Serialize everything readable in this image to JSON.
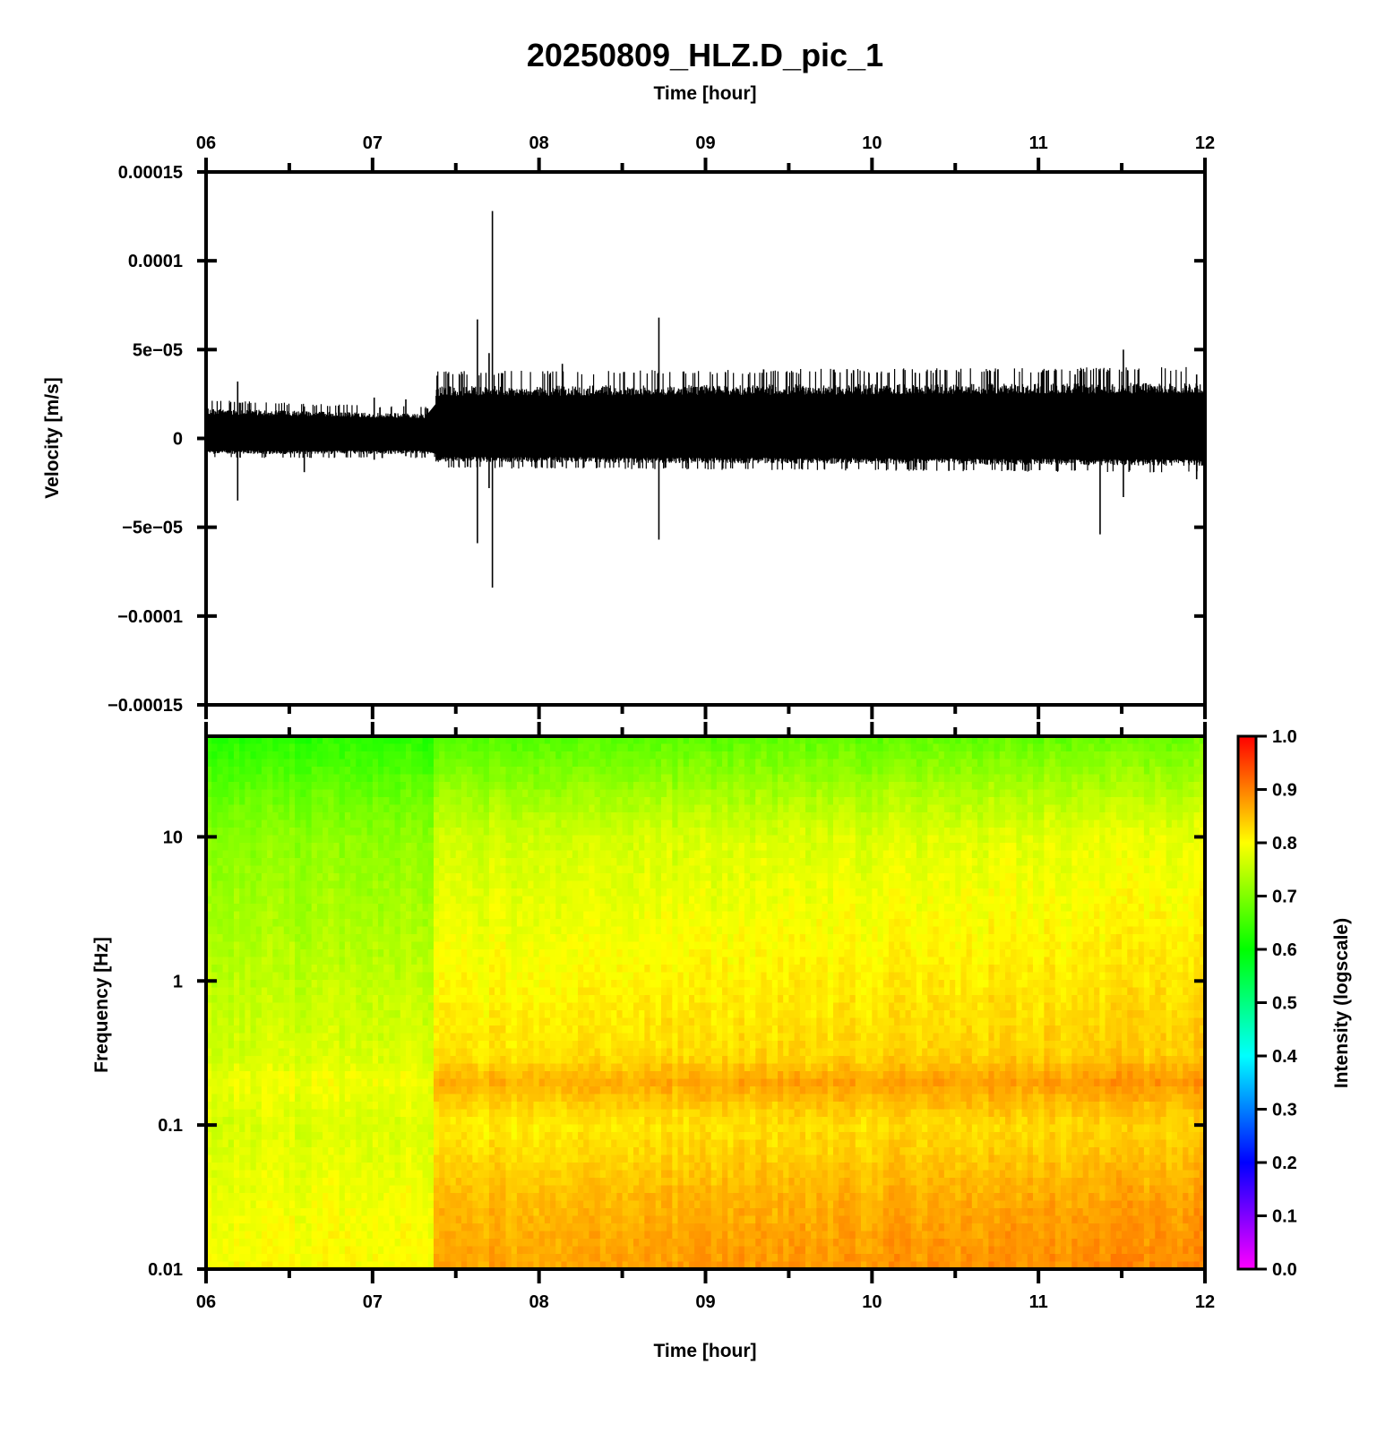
{
  "figure": {
    "title": "20250809_HLZ.D_pic_1"
  },
  "chart_data": [
    {
      "type": "line",
      "panel": "waveform",
      "xlabel": "Time [hour]",
      "ylabel": "Velocity [m/s]",
      "xlim": [
        6,
        12
      ],
      "ylim": [
        -0.00015,
        0.00015
      ],
      "x_ticks": [
        "06",
        "07",
        "08",
        "09",
        "10",
        "11",
        "12"
      ],
      "y_ticks": [
        "0.00015",
        "0.0001",
        "5e−05",
        "0",
        "−5e−05",
        "−0.0001",
        "−0.00015"
      ],
      "y_tick_values": [
        0.00015,
        0.0001,
        5e-05,
        0,
        -5e-05,
        -0.0001,
        -0.00015
      ],
      "trace_color": "#000000",
      "envelope": {
        "description_hours": [
          6.0,
          7.38,
          7.38,
          12.0
        ],
        "positive": [
          1.6e-05,
          1.3e-05,
          2.8e-05,
          3e-05
        ],
        "negative": [
          -8e-06,
          -8e-06,
          -1.2e-05,
          -1.4e-05
        ]
      },
      "spikes": [
        {
          "x": 6.19,
          "max": 3.2e-05,
          "min": -3.5e-05
        },
        {
          "x": 6.59,
          "max": 1.8e-05,
          "min": -1.9e-05
        },
        {
          "x": 7.01,
          "max": 2.3e-05,
          "min": -1.2e-05
        },
        {
          "x": 7.2,
          "max": 2.2e-05,
          "min": -1e-05
        },
        {
          "x": 7.63,
          "max": 6.7e-05,
          "min": -5.9e-05
        },
        {
          "x": 7.7,
          "max": 4.8e-05,
          "min": -2.8e-05
        },
        {
          "x": 7.72,
          "max": 0.000128,
          "min": -8.4e-05
        },
        {
          "x": 8.14,
          "max": 4.2e-05,
          "min": -1.6e-05
        },
        {
          "x": 8.57,
          "max": 3.7e-05,
          "min": -1.5e-05
        },
        {
          "x": 8.72,
          "max": 6.8e-05,
          "min": -5.7e-05
        },
        {
          "x": 9.85,
          "max": 3.9e-05,
          "min": -1.7e-05
        },
        {
          "x": 10.26,
          "max": 3.7e-05,
          "min": -1.6e-05
        },
        {
          "x": 11.22,
          "max": 3.6e-05,
          "min": -1.8e-05
        },
        {
          "x": 11.37,
          "max": 3.3e-05,
          "min": -5.4e-05
        },
        {
          "x": 11.51,
          "max": 5e-05,
          "min": -3.3e-05
        },
        {
          "x": 11.95,
          "max": 3.6e-05,
          "min": -2.3e-05
        }
      ]
    },
    {
      "type": "heatmap",
      "panel": "spectrogram",
      "xlabel": "Time [hour]",
      "ylabel": "Frequency [Hz]",
      "xlim": [
        6,
        12
      ],
      "ylim": [
        0.01,
        50
      ],
      "y_scale": "log",
      "x_ticks": [
        "06",
        "07",
        "08",
        "09",
        "10",
        "11",
        "12"
      ],
      "y_ticks": [
        "10",
        "1",
        "0.1",
        "0.01"
      ],
      "y_tick_values": [
        10,
        1,
        0.1,
        0.01
      ],
      "colorbar": {
        "label": "Intensity (logscale)",
        "range": [
          0,
          1
        ],
        "ticks": [
          "1.0",
          "0.9",
          "0.8",
          "0.7",
          "0.6",
          "0.5",
          "0.4",
          "0.3",
          "0.2",
          "0.1",
          "0.0"
        ],
        "tick_values": [
          1.0,
          0.9,
          0.8,
          0.7,
          0.6,
          0.5,
          0.4,
          0.3,
          0.2,
          0.1,
          0.0
        ],
        "colors": [
          "#ff00ff",
          "#0000ff",
          "#00ffff",
          "#00ff00",
          "#ffff00",
          "#ff0000"
        ]
      },
      "intensity_profile": {
        "frequency_hz": [
          50,
          20,
          10,
          3,
          1,
          0.3,
          0.2,
          0.1,
          0.03,
          0.01
        ],
        "before_0722": [
          0.63,
          0.68,
          0.71,
          0.73,
          0.75,
          0.77,
          0.79,
          0.77,
          0.79,
          0.8
        ],
        "after_0722": [
          0.66,
          0.72,
          0.76,
          0.78,
          0.8,
          0.82,
          0.86,
          0.81,
          0.85,
          0.87
        ],
        "change_hour": 7.38
      }
    }
  ]
}
